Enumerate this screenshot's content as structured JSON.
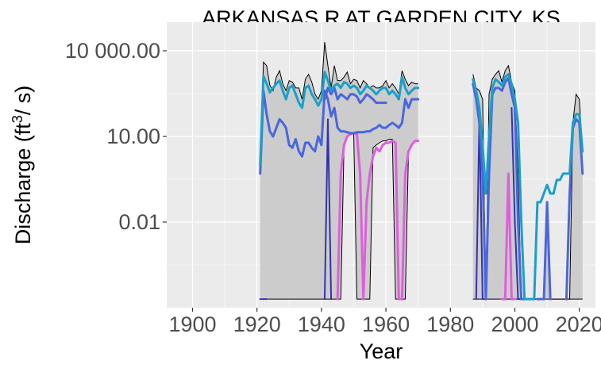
{
  "chart_data": {
    "type": "line",
    "title": "ARKANSAS R AT GARDEN CITY, KS",
    "xlabel": "Year",
    "ylabel": {
      "prefix": "Discharge (ft",
      "sup": "3",
      "suffix": "/ s)"
    },
    "x_ticks": [
      1900,
      1920,
      1940,
      1960,
      1980,
      2000,
      2020
    ],
    "x_tick_labels": [
      "1900",
      "1920",
      "1940",
      "1960",
      "1980",
      "2000",
      "2020"
    ],
    "xlim": [
      1892,
      2025
    ],
    "y_scale": "log10",
    "ylim": [
      1e-05,
      100000
    ],
    "y_ticks": [
      0.01,
      10,
      10000
    ],
    "y_tick_labels": [
      "0.01",
      "10.00",
      "10 000.00"
    ],
    "grid": true,
    "legend": "none",
    "colors": {
      "panel": "#ebebeb",
      "grid_major": "#ffffff",
      "band_fill": "#cccccc",
      "band_edge": "#000000",
      "min_line": "#dd5fdd",
      "low_line": "#3333aa",
      "median_line": "#4a66dd",
      "mean_line": "#1aa0c8",
      "axis_text": "#4d4d4d"
    },
    "envelope": {
      "segments": [
        {
          "x": [
            1921,
            1922,
            1923,
            1924,
            1925,
            1926,
            1927,
            1928,
            1929,
            1930,
            1931,
            1932,
            1933,
            1934,
            1935,
            1936,
            1937,
            1938,
            1939,
            1940,
            1941,
            1942,
            1943,
            1944,
            1945,
            1946,
            1947,
            1948,
            1949,
            1950,
            1951,
            1952,
            1953,
            1954,
            1955,
            1956,
            1957,
            1958,
            1959,
            1960,
            1961,
            1962,
            1963,
            1964,
            1965,
            1966,
            1967,
            1968,
            1969,
            1970
          ],
          "max": [
            1,
            4000,
            3000,
            600,
            400,
            1200,
            2000,
            700,
            400,
            900,
            800,
            500,
            500,
            200,
            1000,
            1500,
            800,
            300,
            200,
            400,
            20000,
            3000,
            500,
            3000,
            900,
            900,
            1200,
            1800,
            700,
            1000,
            900,
            500,
            900,
            700,
            500,
            600,
            500,
            500,
            600,
            900,
            500,
            700,
            500,
            300,
            2000,
            1000,
            600,
            800,
            700,
            700
          ],
          "min": [
            2e-05,
            2e-05,
            2e-05,
            2e-05,
            2e-05,
            2e-05,
            2e-05,
            2e-05,
            2e-05,
            2e-05,
            2e-05,
            2e-05,
            2e-05,
            2e-05,
            2e-05,
            2e-05,
            2e-05,
            2e-05,
            2e-05,
            2e-05,
            2e-05,
            2e-05,
            2e-05,
            2e-05,
            2e-05,
            2e-05,
            5,
            10,
            12,
            13,
            2e-05,
            2e-05,
            2e-05,
            2e-05,
            2e-05,
            4,
            5,
            6,
            7,
            7,
            8,
            8,
            2e-05,
            2e-05,
            2e-05,
            2e-05,
            3,
            5,
            7,
            7
          ]
        },
        {
          "x": [
            1987,
            1988,
            1989,
            1990,
            1991,
            1992,
            1993,
            1994,
            1995,
            1996,
            1997,
            1998,
            1999,
            2000,
            2001,
            2002,
            2003,
            2004,
            2005,
            2006,
            2007,
            2008,
            2009,
            2010,
            2011,
            2012,
            2013,
            2014,
            2015,
            2016,
            2017,
            2018,
            2019,
            2020,
            2021
          ],
          "max": [
            1500,
            500,
            400,
            200,
            2e-05,
            300,
            1000,
            1500,
            2000,
            800,
            2000,
            3000,
            800,
            400,
            0.5,
            2e-05,
            2e-05,
            2e-05,
            2e-05,
            2e-05,
            2e-05,
            2e-05,
            2e-05,
            0.05,
            2e-05,
            2e-05,
            2e-05,
            2e-05,
            2e-05,
            2e-05,
            2e-05,
            30,
            300,
            200,
            3
          ],
          "min": [
            2e-05,
            2e-05,
            2e-05,
            2e-05,
            2e-05,
            2e-05,
            2e-05,
            2e-05,
            2e-05,
            2e-05,
            2e-05,
            2e-05,
            2e-05,
            2e-05,
            2e-05,
            2e-05,
            2e-05,
            2e-05,
            2e-05,
            2e-05,
            2e-05,
            2e-05,
            2e-05,
            2e-05,
            2e-05,
            2e-05,
            2e-05,
            2e-05,
            2e-05,
            2e-05,
            2e-05,
            2e-05,
            2e-05,
            2e-05,
            2e-05
          ]
        }
      ]
    },
    "series": [
      {
        "name": "",
        "color": "#dd5fdd",
        "width": 3,
        "segments": [
          {
            "x": [
              1945,
              1946,
              1947,
              1948,
              1949,
              1950,
              1951,
              1952,
              1953,
              1954,
              1955,
              1956,
              1957,
              1958,
              1959,
              1960,
              1961,
              1962,
              1963,
              1964,
              1965,
              1966,
              1967,
              1968,
              1969,
              1970
            ],
            "y": [
              2e-05,
              0.5,
              5,
              10,
              12,
              13,
              12,
              0.5,
              2e-05,
              0.05,
              0.5,
              2,
              4,
              3,
              5,
              6,
              6,
              7,
              6,
              2e-05,
              2e-05,
              0.5,
              3,
              5,
              7,
              7
            ]
          },
          {
            "x": [
              1996,
              1997,
              1998,
              1999,
              2000
            ],
            "y": [
              2e-05,
              2e-05,
              0.5,
              2e-05,
              2e-05
            ]
          }
        ]
      },
      {
        "name": "",
        "color": "#3333aa",
        "width": 2,
        "segments": [
          {
            "x": [
              1921,
              1922,
              1923
            ],
            "y": [
              2e-05,
              2e-05,
              2e-05
            ]
          },
          {
            "x": [
              1941,
              1942,
              1943
            ],
            "y": [
              2e-05,
              40,
              2e-05
            ]
          },
          {
            "x": [
              1988,
              1989,
              1990,
              1991
            ],
            "y": [
              2e-05,
              50,
              2e-05,
              2e-05
            ]
          },
          {
            "x": [
              1999,
              2000,
              2001,
              2002
            ],
            "y": [
              100,
              0.01,
              2e-05,
              2e-05
            ]
          }
        ]
      },
      {
        "name": "",
        "color": "#4a66dd",
        "width": 3,
        "segments": [
          {
            "x": [
              1921,
              1922,
              1923,
              1924,
              1925,
              1926,
              1927,
              1928,
              1929,
              1930,
              1931,
              1932,
              1933,
              1934,
              1935,
              1936,
              1937,
              1938,
              1939,
              1940,
              1941,
              1942,
              1943,
              1944,
              1945,
              1946,
              1947,
              1948,
              1949,
              1950,
              1951,
              1952,
              1953,
              1954,
              1955,
              1956,
              1957,
              1958,
              1959,
              1960,
              1961,
              1962,
              1963,
              1964,
              1965,
              1966,
              1967,
              1968,
              1969,
              1970
            ],
            "y": [
              0.5,
              400,
              60,
              15,
              10,
              20,
              40,
              30,
              20,
              5,
              4,
              8,
              3,
              2,
              6,
              6,
              4,
              3,
              10,
              5,
              400,
              200,
              50,
              100,
              20,
              15,
              15,
              14,
              13,
              13,
              14,
              14,
              14,
              15,
              15,
              18,
              20,
              25,
              20,
              20,
              25,
              30,
              25,
              20,
              30,
              200,
              100,
              200,
              200,
              200
            ]
          },
          {
            "x": [
              1941,
              1942,
              1943,
              1944,
              1945,
              1946,
              1947,
              1948,
              1949,
              1950,
              1951,
              1952,
              1953,
              1954,
              1955,
              1956,
              1957,
              1958,
              1959,
              1960
            ],
            "y": [
              200,
              500,
              300,
              500,
              200,
              300,
              250,
              200,
              300,
              300,
              250,
              150,
              200,
              300,
              250,
              200,
              150,
              150,
              150,
              150
            ]
          },
          {
            "x": [
              1987,
              1988,
              1989,
              1990,
              1991,
              1992,
              1993,
              1994,
              1995,
              1996,
              1997,
              1998,
              1999,
              2000,
              2001,
              2002,
              2003
            ],
            "y": [
              700,
              200,
              30,
              0.5,
              2e-05,
              0.5,
              300,
              500,
              500,
              400,
              800,
              1100,
              300,
              100,
              0.01,
              2e-05,
              2e-05
            ]
          },
          {
            "x": [
              2007,
              2008,
              2009,
              2010,
              2011
            ],
            "y": [
              2e-05,
              2e-05,
              2e-05,
              0.05,
              2e-05
            ]
          },
          {
            "x": [
              2016,
              2017,
              2018,
              2019,
              2020,
              2021
            ],
            "y": [
              2e-05,
              0.1,
              20,
              40,
              30,
              0.5
            ]
          }
        ]
      },
      {
        "name": "",
        "color": "#1aa0c8",
        "width": 3,
        "segments": [
          {
            "x": [
              1921,
              1922,
              1923,
              1924,
              1925,
              1926,
              1927,
              1928,
              1929,
              1930,
              1931,
              1932,
              1933,
              1934,
              1935,
              1936,
              1937,
              1938,
              1939,
              1940,
              1941,
              1942,
              1943,
              1944,
              1945,
              1946,
              1947,
              1948,
              1949,
              1950,
              1951,
              1952,
              1953,
              1954,
              1955,
              1956,
              1957,
              1958,
              1959,
              1960,
              1961,
              1962,
              1963,
              1964,
              1965,
              1966,
              1967,
              1968,
              1969,
              1970
            ],
            "y": [
              1,
              1300,
              700,
              350,
              500,
              700,
              900,
              400,
              200,
              500,
              600,
              300,
              150,
              100,
              500,
              600,
              300,
              200,
              120,
              200,
              1800,
              900,
              400,
              600,
              700,
              500,
              800,
              700,
              500,
              600,
              500,
              300,
              400,
              600,
              500,
              400,
              300,
              400,
              500,
              500,
              300,
              400,
              300,
              200,
              1200,
              500,
              300,
              400,
              500,
              500
            ]
          },
          {
            "x": [
              1987,
              1988,
              1989,
              1990,
              1991,
              1992,
              1993,
              1994,
              1995,
              1996,
              1997,
              1998,
              1999,
              2000,
              2001,
              2002,
              2003,
              2004,
              2005,
              2006,
              2007,
              2008,
              2009,
              2010,
              2011,
              2012,
              2013,
              2014,
              2015,
              2016,
              2017,
              2018,
              2019,
              2020,
              2021
            ],
            "y": [
              1000,
              400,
              100,
              5,
              0.1,
              10,
              500,
              1000,
              800,
              600,
              1200,
              1500,
              700,
              200,
              30,
              0.01,
              2e-05,
              2e-05,
              2e-05,
              2e-05,
              0.05,
              0.05,
              0.1,
              0.2,
              0.1,
              0.1,
              0.3,
              0.3,
              0.5,
              0.5,
              0.5,
              30,
              60,
              60,
              3
            ]
          }
        ]
      }
    ]
  }
}
